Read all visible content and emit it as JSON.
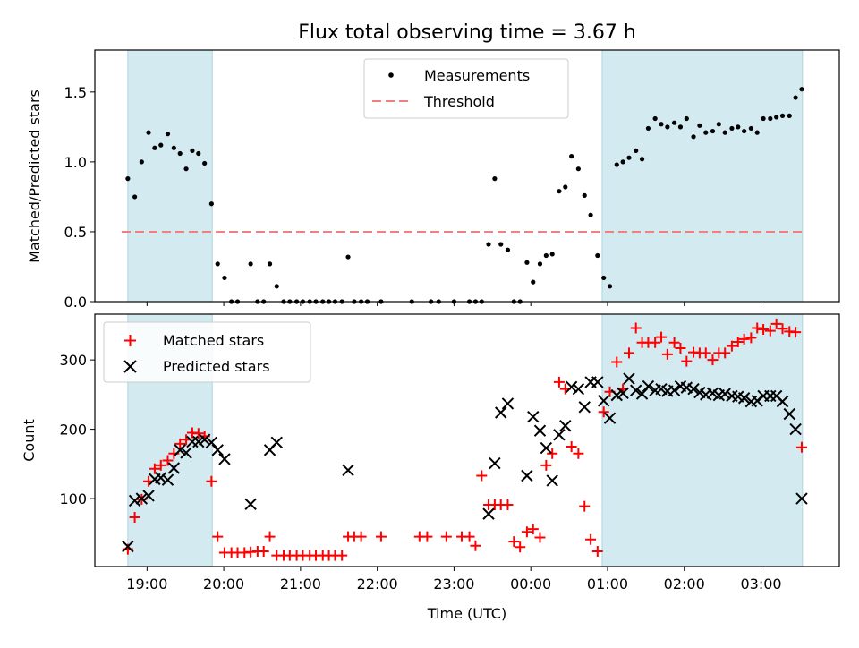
{
  "chart_data": {
    "title": "Flux total observing time = 3.67 h",
    "type": "scatter",
    "xlabel": "Time (UTC)",
    "x_ticks": [
      "19:00",
      "20:00",
      "21:00",
      "22:00",
      "23:00",
      "00:00",
      "01:00",
      "02:00",
      "03:00"
    ],
    "x_unit": "hours since 18:00 UTC",
    "shaded_intervals_hours": [
      [
        0.75,
        1.85
      ],
      [
        6.93,
        9.54
      ]
    ],
    "shade_color": "#d3eaf0",
    "panels": [
      {
        "id": "top",
        "ylabel": "Matched/Predicted stars",
        "ylim": [
          0,
          1.8
        ],
        "yticks": [
          0.0,
          0.5,
          1.0,
          1.5
        ],
        "ytick_labels": [
          "0.0",
          "0.5",
          "1.0",
          "1.5"
        ],
        "legend_position": "upper center",
        "threshold": {
          "name": "Threshold",
          "value": 0.5,
          "color": "#f08080"
        },
        "series": [
          {
            "name": "Measurements",
            "color": "#000000",
            "marker": "dot",
            "x": [
              0.75,
              0.84,
              0.93,
              1.02,
              1.1,
              1.18,
              1.27,
              1.35,
              1.43,
              1.51,
              1.59,
              1.67,
              1.75,
              1.84,
              1.92,
              2.01,
              2.1,
              2.18,
              2.35,
              2.44,
              2.52,
              2.6,
              2.69,
              2.78,
              2.86,
              2.95,
              3.03,
              3.12,
              3.2,
              3.29,
              3.37,
              3.45,
              3.54,
              3.62,
              3.7,
              3.79,
              3.87,
              4.05,
              4.45,
              4.7,
              4.8,
              5.0,
              5.2,
              5.28,
              5.36,
              5.45,
              5.53,
              5.61,
              5.7,
              5.78,
              5.86,
              5.95,
              6.03,
              6.12,
              6.2,
              6.28,
              6.37,
              6.45,
              6.53,
              6.62,
              6.7,
              6.78,
              6.87,
              6.95,
              7.03,
              7.12,
              7.2,
              7.28,
              7.37,
              7.45,
              7.53,
              7.62,
              7.7,
              7.78,
              7.87,
              7.95,
              8.03,
              8.12,
              8.2,
              8.28,
              8.37,
              8.45,
              8.53,
              8.62,
              8.7,
              8.78,
              8.87,
              8.95,
              9.03,
              9.12,
              9.2,
              9.28,
              9.37,
              9.45,
              9.53
            ],
            "y": [
              0.88,
              0.75,
              1.0,
              1.21,
              1.1,
              1.12,
              1.2,
              1.1,
              1.06,
              0.95,
              1.08,
              1.06,
              0.99,
              0.7,
              0.27,
              0.17,
              0.0,
              0.0,
              0.27,
              0.0,
              0.0,
              0.27,
              0.11,
              0.0,
              0.0,
              0.0,
              0.0,
              0.0,
              0.0,
              0.0,
              0.0,
              0.0,
              0.0,
              0.32,
              0.0,
              0.0,
              0.0,
              0.0,
              0.0,
              0.0,
              0.0,
              0.0,
              0.0,
              0.0,
              0.0,
              0.41,
              0.88,
              0.41,
              0.37,
              0.0,
              0.0,
              0.28,
              0.14,
              0.27,
              0.33,
              0.34,
              0.79,
              0.82,
              1.04,
              0.95,
              0.76,
              0.62,
              0.33,
              0.17,
              0.11,
              0.98,
              1.0,
              1.03,
              1.08,
              1.02,
              1.24,
              1.31,
              1.27,
              1.25,
              1.28,
              1.25,
              1.31,
              1.18,
              1.26,
              1.21,
              1.22,
              1.27,
              1.21,
              1.24,
              1.25,
              1.22,
              1.24,
              1.21,
              1.31,
              1.31,
              1.32,
              1.33,
              1.33,
              1.46,
              1.52
            ]
          }
        ]
      },
      {
        "id": "bottom",
        "ylabel": "Count",
        "ylim": [
          2,
          366
        ],
        "yticks": [
          100,
          200,
          300
        ],
        "ytick_labels": [
          "100",
          "200",
          "300"
        ],
        "legend_position": "upper left",
        "series": [
          {
            "name": "Matched stars",
            "color": "#ff0000",
            "marker": "plus",
            "x": [
              0.75,
              0.84,
              0.93,
              1.02,
              1.1,
              1.18,
              1.27,
              1.35,
              1.43,
              1.51,
              1.59,
              1.67,
              1.75,
              1.84,
              1.92,
              2.01,
              2.1,
              2.18,
              2.27,
              2.35,
              2.44,
              2.52,
              2.6,
              2.69,
              2.78,
              2.86,
              2.95,
              3.03,
              3.12,
              3.2,
              3.29,
              3.37,
              3.45,
              3.54,
              3.62,
              3.7,
              3.79,
              4.05,
              4.55,
              4.65,
              4.9,
              5.1,
              5.2,
              5.28,
              5.36,
              5.45,
              5.53,
              5.61,
              5.7,
              5.78,
              5.86,
              5.95,
              6.03,
              6.12,
              6.2,
              6.28,
              6.37,
              6.45,
              6.53,
              6.62,
              6.7,
              6.78,
              6.87,
              6.95,
              7.03,
              7.12,
              7.2,
              7.28,
              7.37,
              7.45,
              7.53,
              7.62,
              7.7,
              7.78,
              7.87,
              7.95,
              8.03,
              8.12,
              8.2,
              8.28,
              8.37,
              8.45,
              8.53,
              8.62,
              8.7,
              8.78,
              8.87,
              8.95,
              9.03,
              9.12,
              9.2,
              9.28,
              9.37,
              9.45,
              9.53
            ],
            "y": [
              27,
              73,
              99,
              125,
              143,
              148,
              155,
              165,
              179,
              185,
              195,
              194,
              190,
              125,
              45,
              22,
              22,
              22,
              22,
              23,
              24,
              24,
              45,
              18,
              18,
              18,
              18,
              18,
              18,
              18,
              18,
              18,
              18,
              18,
              45,
              45,
              45,
              45,
              45,
              45,
              45,
              45,
              45,
              32,
              133,
              91,
              91,
              91,
              91,
              38,
              30,
              52,
              56,
              44,
              148,
              165,
              268,
              258,
              175,
              165,
              89,
              41,
              24,
              225,
              254,
              297,
              258,
              310,
              346,
              325,
              325,
              325,
              333,
              308,
              325,
              317,
              298,
              311,
              310,
              310,
              300,
              310,
              310,
              320,
              326,
              330,
              332,
              346,
              344,
              342,
              352,
              345,
              341,
              340,
              174
            ]
          },
          {
            "name": "Predicted stars",
            "color": "#000000",
            "marker": "x",
            "x": [
              0.75,
              0.84,
              0.93,
              1.02,
              1.1,
              1.18,
              1.27,
              1.35,
              1.43,
              1.51,
              1.59,
              1.67,
              1.75,
              1.84,
              1.92,
              2.01,
              2.35,
              2.6,
              2.69,
              3.62,
              5.45,
              5.53,
              5.61,
              5.7,
              5.95,
              6.03,
              6.12,
              6.2,
              6.28,
              6.37,
              6.45,
              6.53,
              6.62,
              6.7,
              6.78,
              6.87,
              6.95,
              7.03,
              7.12,
              7.2,
              7.28,
              7.37,
              7.45,
              7.53,
              7.62,
              7.7,
              7.78,
              7.87,
              7.95,
              8.03,
              8.12,
              8.2,
              8.28,
              8.37,
              8.45,
              8.53,
              8.62,
              8.7,
              8.78,
              8.87,
              8.95,
              9.03,
              9.12,
              9.2,
              9.28,
              9.37,
              9.45,
              9.53
            ],
            "y": [
              31,
              97,
              100,
              104,
              128,
              130,
              127,
              144,
              170,
              166,
              182,
              182,
              185,
              181,
              170,
              157,
              92,
              170,
              181,
              141,
              78,
              151,
              224,
              237,
              133,
              218,
              198,
              173,
              126,
              192,
              205,
              261,
              258,
              232,
              268,
              268,
              241,
              216,
              249,
              252,
              273,
              256,
              251,
              262,
              256,
              258,
              255,
              256,
              262,
              260,
              258,
              253,
              250,
              252,
              249,
              251,
              248,
              247,
              245,
              240,
              241,
              248,
              248,
              248,
              240,
              222,
              200,
              100
            ]
          }
        ]
      }
    ]
  }
}
